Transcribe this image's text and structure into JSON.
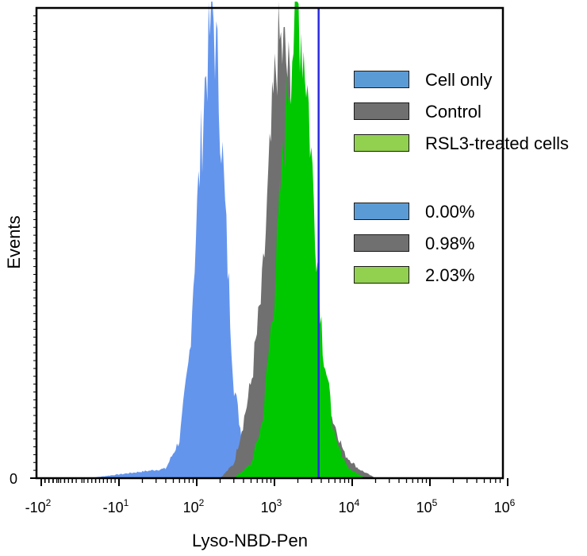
{
  "chart_data": {
    "type": "area",
    "xlabel": "Lyso-NBD-Pen",
    "ylabel": "Events",
    "x_scale": "biexponential",
    "x_ticks": [
      {
        "value": -100,
        "base": "-10",
        "exp": "2"
      },
      {
        "value": -10,
        "base": "-10",
        "exp": "1"
      },
      {
        "value": 100,
        "base": "10",
        "exp": "2"
      },
      {
        "value": 1000,
        "base": "10",
        "exp": "3"
      },
      {
        "value": 10000,
        "base": "10",
        "exp": "4"
      },
      {
        "value": 100000,
        "base": "10",
        "exp": "5"
      },
      {
        "value": 1000000,
        "base": "10",
        "exp": "6"
      }
    ],
    "y_ticks": [
      {
        "value": 0,
        "label": "0"
      }
    ],
    "gate_x": 3700,
    "series": [
      {
        "name": "Cell only",
        "color": "#6495ED",
        "peak_x": 160,
        "relative_peak": 1.0,
        "x": [
          -25,
          40,
          60,
          80,
          100,
          130,
          160,
          200,
          250,
          300,
          400,
          500,
          650
        ],
        "y": [
          0.0,
          0.02,
          0.08,
          0.25,
          0.55,
          0.85,
          1.0,
          0.78,
          0.45,
          0.2,
          0.06,
          0.02,
          0.0
        ]
      },
      {
        "name": "Control",
        "color": "#707070",
        "peak_x": 1100,
        "relative_peak": 0.92,
        "x": [
          200,
          300,
          400,
          500,
          700,
          900,
          1100,
          1400,
          1800,
          2500,
          3500,
          5000,
          8000,
          12000,
          20000
        ],
        "y": [
          0.0,
          0.03,
          0.12,
          0.2,
          0.4,
          0.7,
          0.92,
          0.88,
          0.75,
          0.55,
          0.3,
          0.15,
          0.05,
          0.02,
          0.0
        ]
      },
      {
        "name": "RSL3-treated cells",
        "color": "#00C800",
        "peak_x": 2000,
        "relative_peak": 1.0,
        "x": [
          300,
          500,
          700,
          1000,
          1500,
          2000,
          2600,
          3300,
          4200,
          6000,
          9000,
          15000
        ],
        "y": [
          0.0,
          0.03,
          0.12,
          0.4,
          0.85,
          1.0,
          0.85,
          0.55,
          0.28,
          0.08,
          0.02,
          0.0
        ]
      }
    ]
  },
  "legend": {
    "items": [
      {
        "label": "Cell only",
        "color": "#5B9BD5"
      },
      {
        "label": "Control",
        "color": "#707070"
      },
      {
        "label": "RSL3-treated cells",
        "color": "#92D050"
      }
    ],
    "stats": [
      {
        "label": "0.00%",
        "color": "#5B9BD5"
      },
      {
        "label": "0.98%",
        "color": "#707070"
      },
      {
        "label": "2.03%",
        "color": "#92D050"
      }
    ]
  }
}
